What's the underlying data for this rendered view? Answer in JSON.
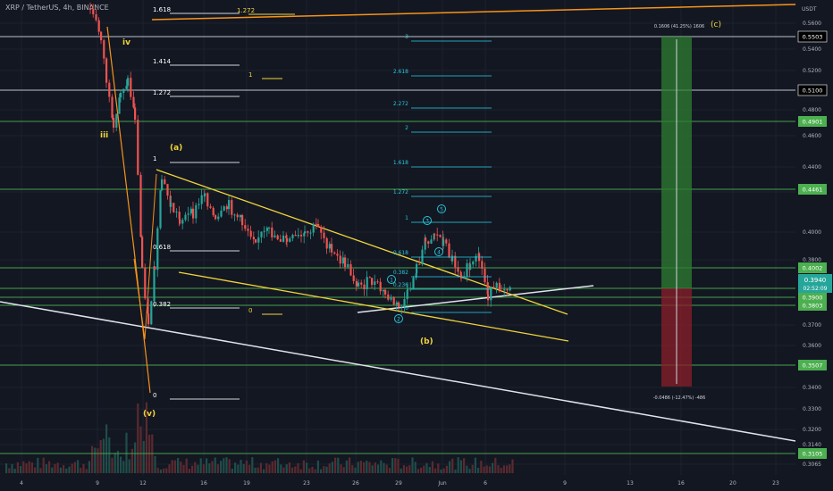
{
  "header": {
    "title": "XRP / TetherUS, 4h, BINANCE"
  },
  "chart_data": {
    "type": "candlestick",
    "symbol": "XRP / TetherUS",
    "interval": "4h",
    "exchange": "BINANCE",
    "currency": "USDT",
    "current_price": "0.3940",
    "countdown": "02:52:09",
    "price_axis_ticks": [
      "0.5600",
      "0.5400",
      "0.5200",
      "0.5000",
      "0.4800",
      "0.4600",
      "0.4400",
      "0.4200",
      "0.4000",
      "0.3800",
      "0.3700",
      "0.3600",
      "0.3500",
      "0.3400",
      "0.3300",
      "0.3200",
      "0.3140",
      "0.3065"
    ],
    "date_axis_ticks": [
      "4",
      "9",
      "12",
      "16",
      "19",
      "23",
      "26",
      "29",
      "Jun",
      "6",
      "9",
      "13",
      "16",
      "20",
      "23"
    ],
    "horizontal_levels": [
      {
        "price": "0.5503",
        "color": "#ffffff"
      },
      {
        "price": "0.5100",
        "color": "#ffffff"
      },
      {
        "price": "0.4901",
        "color": "#4caf50"
      },
      {
        "price": "0.4461",
        "color": "#4caf50"
      },
      {
        "price": "0.4002",
        "color": "#4caf50"
      },
      {
        "price": "0.3900",
        "color": "#4caf50"
      },
      {
        "price": "0.3803",
        "color": "#4caf50"
      },
      {
        "price": "0.3507",
        "color": "#4caf50"
      },
      {
        "price": "0.3105",
        "color": "#4caf50"
      }
    ],
    "fib_white": [
      "1.618",
      "1.414",
      "1.272",
      "1",
      "0.618",
      "0.382",
      "0"
    ],
    "fib_yellow": [
      "1.272",
      "1",
      "0"
    ],
    "fib_cyan": [
      "3",
      "2.618",
      "2.272",
      "2",
      "1.618",
      "1.272",
      "1",
      "0.618",
      "0.382",
      "0.236",
      "0"
    ],
    "wave_labels": {
      "iv": "iv",
      "iii": "iii",
      "v": "(v)",
      "a": "(a)",
      "b": "(b)",
      "c": "(c)",
      "c1": "1",
      "c2": "2",
      "c3": "3",
      "c4": "4",
      "c5": "5"
    },
    "target_label": "0.1606 (41.25%) 1606",
    "stop_label": "-0.0486 (-12.47%) -486"
  },
  "colors": {
    "bg": "#131722",
    "green": "#4caf50",
    "yellow": "#f0d43a",
    "orange": "#f7931a",
    "cyan": "#26c6da",
    "up": "#26a69a",
    "down": "#ef5350"
  }
}
